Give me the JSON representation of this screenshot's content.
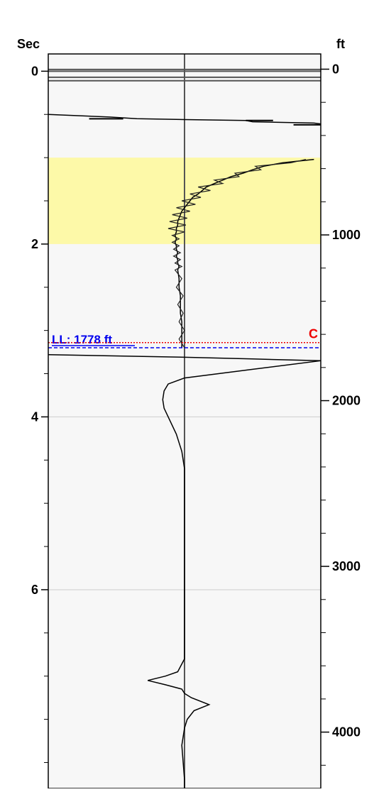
{
  "chart_data": {
    "type": "line",
    "left_axis": {
      "label": "Sec",
      "range": [
        -0.2,
        8.3
      ],
      "ticks": [
        0,
        2,
        4,
        6
      ],
      "tick_labels": [
        "0",
        "2",
        "4",
        "6"
      ],
      "minor_step": 0.5
    },
    "right_axis": {
      "label": "ft",
      "range": [
        -92,
        4340
      ],
      "ticks": [
        0,
        1000,
        2000,
        3000,
        4000
      ],
      "tick_labels": [
        "0",
        "1000",
        "2000",
        "3000",
        "4000"
      ],
      "minor_step": 200
    },
    "x_range": [
      -1,
      1
    ],
    "highlight_band": {
      "from_sec": 1.0,
      "to_sec": 2.0,
      "color": "#fdf9a8"
    },
    "gridlines_sec": [
      4,
      6
    ],
    "markers": [
      {
        "label": "LL: 1778 ft",
        "sec": 3.2,
        "color": "#0000ee",
        "style": "dashed"
      },
      {
        "label": "C",
        "sec": 3.14,
        "color": "#ee0000",
        "style": "dotted"
      }
    ],
    "colors": {
      "trace": "#000000",
      "centerline": "#555555",
      "plot_bg": "#f7f7f7",
      "frame": "#000000"
    },
    "series": [
      {
        "points": [
          [
            0.5,
            -1.0
          ],
          [
            0.53,
            -0.55
          ],
          [
            0.55,
            -0.35
          ],
          [
            0.56,
            0.0
          ],
          [
            0.57,
            0.45
          ],
          [
            0.585,
            0.5
          ],
          [
            0.6,
            0.95
          ],
          [
            0.61,
            1.0
          ]
        ]
      },
      {
        "points": [
          [
            1.02,
            0.95
          ],
          [
            1.06,
            0.72
          ],
          [
            1.1,
            0.58
          ],
          [
            1.14,
            0.5
          ],
          [
            1.18,
            0.43
          ],
          [
            1.22,
            0.34
          ],
          [
            1.26,
            0.28
          ],
          [
            1.3,
            0.22
          ],
          [
            1.34,
            0.16
          ],
          [
            1.38,
            0.13
          ],
          [
            1.42,
            0.1
          ],
          [
            1.46,
            0.06
          ],
          [
            1.5,
            0.04
          ],
          [
            1.54,
            0.02
          ],
          [
            1.58,
            0.0
          ],
          [
            1.62,
            -0.02
          ],
          [
            1.66,
            -0.03
          ],
          [
            1.7,
            -0.04
          ],
          [
            1.74,
            -0.05
          ],
          [
            1.78,
            -0.05
          ],
          [
            1.82,
            -0.06
          ],
          [
            1.86,
            -0.06
          ],
          [
            1.9,
            -0.07
          ],
          [
            1.94,
            -0.06
          ],
          [
            1.98,
            -0.07
          ],
          [
            2.02,
            -0.06
          ],
          [
            2.06,
            -0.06
          ],
          [
            2.1,
            -0.05
          ],
          [
            2.14,
            -0.06
          ],
          [
            2.18,
            -0.05
          ],
          [
            2.22,
            -0.05
          ],
          [
            2.26,
            -0.04
          ],
          [
            2.3,
            -0.05
          ],
          [
            2.4,
            -0.04
          ],
          [
            2.5,
            -0.04
          ],
          [
            2.6,
            -0.03
          ],
          [
            2.7,
            -0.03
          ],
          [
            2.8,
            -0.03
          ],
          [
            2.9,
            -0.02
          ],
          [
            3.0,
            -0.02
          ],
          [
            3.1,
            -0.02
          ],
          [
            3.2,
            -0.02
          ]
        ]
      },
      {
        "points": [
          [
            3.28,
            -1.0
          ],
          [
            3.31,
            0.0
          ],
          [
            3.33,
            0.5
          ],
          [
            3.35,
            1.0
          ]
        ]
      },
      {
        "points": [
          [
            3.35,
            1.0
          ],
          [
            3.45,
            0.5
          ],
          [
            3.55,
            0.0
          ],
          [
            3.62,
            -0.12
          ],
          [
            3.7,
            -0.15
          ],
          [
            3.8,
            -0.16
          ],
          [
            3.9,
            -0.15
          ],
          [
            4.0,
            -0.12
          ],
          [
            4.2,
            -0.06
          ],
          [
            4.4,
            -0.02
          ],
          [
            4.6,
            0.0
          ],
          [
            4.8,
            0.0
          ],
          [
            5.0,
            0.0
          ],
          [
            5.5,
            0.0
          ],
          [
            6.0,
            0.0
          ],
          [
            6.5,
            0.0
          ],
          [
            6.8,
            0.0
          ],
          [
            6.95,
            -0.05
          ],
          [
            7.0,
            -0.14
          ],
          [
            7.05,
            -0.27
          ],
          [
            7.1,
            -0.14
          ],
          [
            7.15,
            -0.02
          ],
          [
            7.2,
            0.0
          ],
          [
            7.25,
            0.05
          ],
          [
            7.33,
            0.18
          ],
          [
            7.4,
            0.07
          ],
          [
            7.5,
            0.02
          ],
          [
            7.6,
            0.0
          ],
          [
            7.8,
            -0.02
          ],
          [
            8.0,
            -0.01
          ],
          [
            8.2,
            0.0
          ],
          [
            8.3,
            0.0
          ]
        ]
      }
    ],
    "horizontal_lines_sec": [
      -0.02,
      0.0,
      0.07,
      0.11
    ],
    "short_segments": [
      {
        "sec": 0.55,
        "x0": -0.7,
        "x1": -0.45
      },
      {
        "sec": 0.57,
        "x0": 0.45,
        "x1": 0.65
      },
      {
        "sec": 0.62,
        "x0": 0.8,
        "x1": 1.0
      }
    ]
  }
}
